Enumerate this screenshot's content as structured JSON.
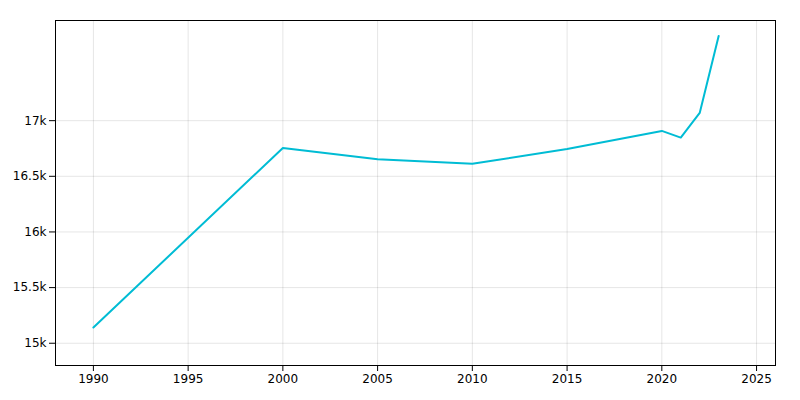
{
  "chart_data": {
    "type": "line",
    "x": [
      1990,
      2000,
      2005,
      2010,
      2015,
      2020,
      2021,
      2022,
      2023
    ],
    "values": [
      15142,
      16754,
      16653,
      16612,
      16745,
      16908,
      16848,
      17069,
      17760
    ],
    "color": "#00bcd4",
    "xlim": [
      1988,
      2026
    ],
    "xticks": [
      1990,
      1995,
      2000,
      2005,
      2010,
      2015,
      2020,
      2025
    ],
    "ylim": [
      14800,
      17900
    ],
    "yticks": [
      {
        "value": 15000,
        "label": "15k"
      },
      {
        "value": 15500,
        "label": "15.5k"
      },
      {
        "value": 16000,
        "label": "16k"
      },
      {
        "value": 16500,
        "label": "16.5k"
      },
      {
        "value": 17000,
        "label": "17k"
      }
    ],
    "grid": true
  }
}
